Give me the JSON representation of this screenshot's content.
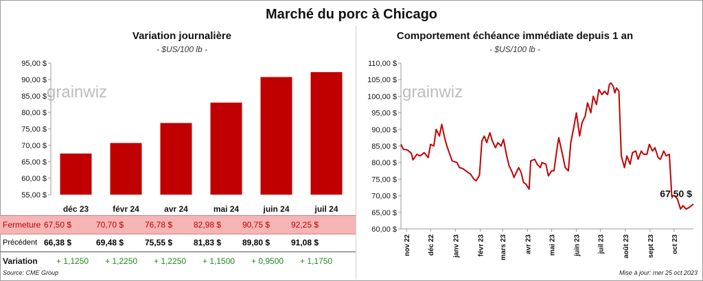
{
  "title": "Marché du porc à Chicago",
  "left_panel": {
    "title": "Variation  journalière",
    "subtitle": "- $US/100 lb -",
    "watermark": "grainwiz"
  },
  "right_panel": {
    "title": "Comportement  échéance immédiate depuis 1 an",
    "subtitle": "- $US/100 lb -",
    "watermark": "grainwiz",
    "last_value_label": "67,50 $"
  },
  "table": {
    "rows": [
      {
        "label": "Fermeture",
        "values": [
          "67,50  $",
          "70,70  $",
          "76,78  $",
          "82,98  $",
          "90,75  $",
          "92,25  $"
        ]
      },
      {
        "label": "Précédent",
        "values": [
          "66,38  $",
          "69,48  $",
          "75,55  $",
          "81,83  $",
          "89,80  $",
          "91,08  $"
        ]
      },
      {
        "label": "Variation",
        "values": [
          "+ 1,1250",
          "+ 1,2250",
          "+ 1,2250",
          "+ 1,1500",
          "+ 0,9500",
          "+ 1,1750"
        ]
      }
    ]
  },
  "footer": {
    "source": "Source: CME Group",
    "updated": "Mise à jour: mer 25 oct 2023"
  },
  "colors": {
    "bar": "#c00000",
    "line": "#c00000",
    "close_row_bg": "#f5b5b5",
    "variation_text": "#1a8a1a"
  },
  "chart_data": [
    {
      "type": "bar",
      "categories": [
        "déc 23",
        "févr 24",
        "avr 24",
        "mai 24",
        "juin 24",
        "juil 24"
      ],
      "values": [
        67.5,
        70.7,
        76.78,
        82.98,
        90.75,
        92.25
      ],
      "ylim": [
        55,
        95
      ],
      "yticks": [
        55,
        60,
        65,
        70,
        75,
        80,
        85,
        90,
        95
      ],
      "ytick_labels": [
        "55,00 $",
        "60,00 $",
        "65,00 $",
        "70,00 $",
        "75,00 $",
        "80,00 $",
        "85,00 $",
        "90,00 $",
        "95,00 $"
      ],
      "grid": false
    },
    {
      "type": "line",
      "ylim": [
        60,
        110
      ],
      "yticks": [
        60,
        65,
        70,
        75,
        80,
        85,
        90,
        95,
        100,
        105,
        110
      ],
      "ytick_labels": [
        "60,00 $",
        "65,00 $",
        "70,00 $",
        "75,00 $",
        "80,00 $",
        "85,00 $",
        "90,00 $",
        "95,00 $",
        "100,00 $",
        "105,00 $",
        "110,00 $"
      ],
      "xlim": [
        "2022-10-25",
        "2023-10-25"
      ],
      "xticks": [
        "2022-11-01",
        "2022-12-01",
        "2023-01-01",
        "2023-02-01",
        "2023-03-01",
        "2023-04-01",
        "2023-05-01",
        "2023-06-01",
        "2023-07-01",
        "2023-08-01",
        "2023-09-01",
        "2023-10-01"
      ],
      "xtick_labels": [
        "nov 22",
        "déc 22",
        "janv 23",
        "févr 23",
        "mars 23",
        "avr 23",
        "mai 23",
        "juin 23",
        "juil 23",
        "août 23",
        "sept 23",
        "oct 23"
      ],
      "grid": false,
      "series": [
        {
          "points": [
            [
              "2022-10-25",
              85.5
            ],
            [
              "2022-10-28",
              84.0
            ],
            [
              "2022-11-02",
              83.8
            ],
            [
              "2022-11-07",
              82.8
            ],
            [
              "2022-11-09",
              80.8
            ],
            [
              "2022-11-14",
              82.5
            ],
            [
              "2022-11-18",
              82.0
            ],
            [
              "2022-11-23",
              83.0
            ],
            [
              "2022-11-28",
              81.5
            ],
            [
              "2022-12-01",
              85.5
            ],
            [
              "2022-12-05",
              85.0
            ],
            [
              "2022-12-08",
              90.0
            ],
            [
              "2022-12-12",
              88.0
            ],
            [
              "2022-12-15",
              91.5
            ],
            [
              "2022-12-19",
              87.0
            ],
            [
              "2022-12-22",
              84.5
            ],
            [
              "2022-12-28",
              80.5
            ],
            [
              "2023-01-03",
              80.0
            ],
            [
              "2023-01-06",
              78.5
            ],
            [
              "2023-01-10",
              78.2
            ],
            [
              "2023-01-17",
              77.0
            ],
            [
              "2023-01-20",
              76.5
            ],
            [
              "2023-01-24",
              75.0
            ],
            [
              "2023-01-27",
              74.5
            ],
            [
              "2023-01-31",
              76.2
            ],
            [
              "2023-02-03",
              86.5
            ],
            [
              "2023-02-06",
              88.0
            ],
            [
              "2023-02-09",
              86.0
            ],
            [
              "2023-02-13",
              89.0
            ],
            [
              "2023-02-16",
              86.5
            ],
            [
              "2023-02-20",
              84.5
            ],
            [
              "2023-02-23",
              86.0
            ],
            [
              "2023-02-27",
              85.0
            ],
            [
              "2023-03-02",
              87.0
            ],
            [
              "2023-03-06",
              82.0
            ],
            [
              "2023-03-09",
              79.0
            ],
            [
              "2023-03-13",
              77.0
            ],
            [
              "2023-03-15",
              75.5
            ],
            [
              "2023-03-17",
              76.5
            ],
            [
              "2023-03-21",
              78.5
            ],
            [
              "2023-03-24",
              77.0
            ],
            [
              "2023-03-27",
              74.0
            ],
            [
              "2023-03-30",
              73.5
            ],
            [
              "2023-04-03",
              72.0
            ],
            [
              "2023-04-05",
              80.5
            ],
            [
              "2023-04-10",
              81.0
            ],
            [
              "2023-04-13",
              79.5
            ],
            [
              "2023-04-17",
              78.5
            ],
            [
              "2023-04-19",
              80.0
            ],
            [
              "2023-04-24",
              79.5
            ],
            [
              "2023-04-27",
              76.0
            ],
            [
              "2023-05-01",
              77.5
            ],
            [
              "2023-05-04",
              77.5
            ],
            [
              "2023-05-08",
              84.5
            ],
            [
              "2023-05-10",
              87.5
            ],
            [
              "2023-05-15",
              82.0
            ],
            [
              "2023-05-18",
              78.5
            ],
            [
              "2023-05-22",
              77.5
            ],
            [
              "2023-05-25",
              86.0
            ],
            [
              "2023-05-29",
              91.0
            ],
            [
              "2023-06-01",
              95.0
            ],
            [
              "2023-06-05",
              88.0
            ],
            [
              "2023-06-08",
              92.0
            ],
            [
              "2023-06-12",
              94.0
            ],
            [
              "2023-06-15",
              98.0
            ],
            [
              "2023-06-19",
              95.0
            ],
            [
              "2023-06-22",
              100.0
            ],
            [
              "2023-06-26",
              97.5
            ],
            [
              "2023-06-29",
              102.0
            ],
            [
              "2023-07-03",
              100.5
            ],
            [
              "2023-07-06",
              101.5
            ],
            [
              "2023-07-10",
              100.5
            ],
            [
              "2023-07-12",
              103.5
            ],
            [
              "2023-07-14",
              104.0
            ],
            [
              "2023-07-17",
              103.0
            ],
            [
              "2023-07-19",
              101.0
            ],
            [
              "2023-07-21",
              102.5
            ],
            [
              "2023-07-24",
              101.5
            ],
            [
              "2023-07-27",
              82.0
            ],
            [
              "2023-07-31",
              78.5
            ],
            [
              "2023-08-03",
              82.0
            ],
            [
              "2023-08-07",
              79.5
            ],
            [
              "2023-08-10",
              83.0
            ],
            [
              "2023-08-14",
              83.5
            ],
            [
              "2023-08-17",
              81.0
            ],
            [
              "2023-08-21",
              83.5
            ],
            [
              "2023-08-24",
              82.5
            ],
            [
              "2023-08-28",
              82.5
            ],
            [
              "2023-08-31",
              85.5
            ],
            [
              "2023-09-04",
              83.5
            ],
            [
              "2023-09-07",
              84.5
            ],
            [
              "2023-09-11",
              81.5
            ],
            [
              "2023-09-14",
              81.0
            ],
            [
              "2023-09-18",
              83.5
            ],
            [
              "2023-09-21",
              82.0
            ],
            [
              "2023-09-25",
              82.5
            ],
            [
              "2023-09-28",
              70.0
            ],
            [
              "2023-10-02",
              70.0
            ],
            [
              "2023-10-05",
              69.0
            ],
            [
              "2023-10-09",
              66.0
            ],
            [
              "2023-10-12",
              67.0
            ],
            [
              "2023-10-16",
              66.0
            ],
            [
              "2023-10-20",
              66.5
            ],
            [
              "2023-10-25",
              67.5
            ]
          ]
        }
      ]
    }
  ]
}
